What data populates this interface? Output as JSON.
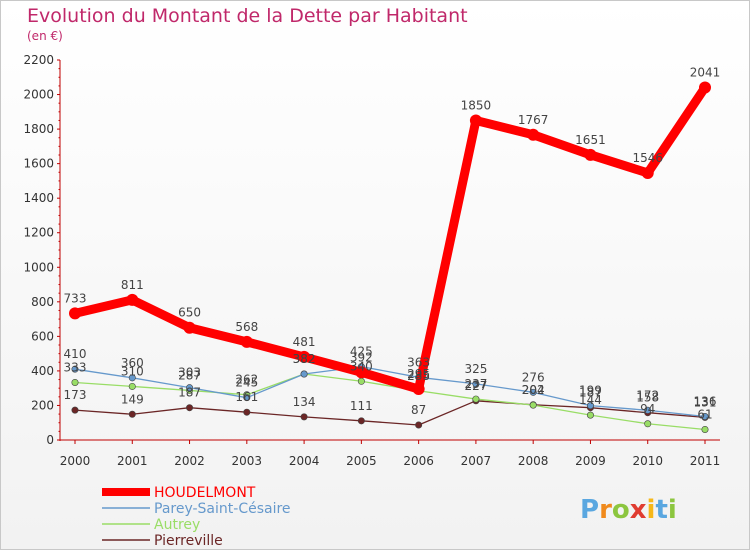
{
  "chart_data": {
    "type": "line",
    "title": "Evolution du Montant de la Dette par Habitant",
    "subtitle": "(en €)",
    "xlabel": "",
    "ylabel": "",
    "x": [
      "2000",
      "2001",
      "2002",
      "2003",
      "2004",
      "2005",
      "2006",
      "2007",
      "2008",
      "2009",
      "2010",
      "2011"
    ],
    "ylim": [
      0,
      2200
    ],
    "yticks": [
      0,
      200,
      400,
      600,
      800,
      1000,
      1200,
      1400,
      1600,
      1800,
      2000,
      2200
    ],
    "grid": false,
    "legend_position": "bottom-left",
    "series": [
      {
        "name": "HOUDELMONT",
        "color": "#ff0000",
        "values": [
          733,
          811,
          650,
          568,
          481,
          392,
          295,
          1850,
          1767,
          1651,
          1546,
          2041
        ]
      },
      {
        "name": "Parey-Saint-Césaire",
        "color": "#6699cc",
        "values": [
          410,
          360,
          303,
          245,
          382,
          425,
          363,
          325,
          276,
          199,
          172,
          136
        ]
      },
      {
        "name": "Autrey",
        "color": "#99dd66",
        "values": [
          333,
          310,
          287,
          262,
          382,
          340,
          285,
          237,
          202,
          144,
          94,
          61
        ]
      },
      {
        "name": "Pierreville",
        "color": "#6b2626",
        "values": [
          173,
          149,
          187,
          161,
          134,
          111,
          87,
          227,
          204,
          187,
          158,
          131
        ]
      }
    ],
    "data_labels": [
      [
        "733",
        "811",
        "650",
        "568",
        "481",
        "392",
        "295",
        "1850",
        "1767",
        "1651",
        "1546",
        "2041"
      ],
      [
        "410",
        "360",
        "303",
        "245",
        "382",
        "425",
        "363",
        "325",
        "276",
        "199",
        "172",
        "136"
      ],
      [
        "333",
        "310",
        "287",
        "262",
        "382",
        "340",
        "285",
        "237",
        "202",
        "144",
        "94",
        "61"
      ],
      [
        "173",
        "149",
        "187",
        "161",
        "134",
        "111",
        "87",
        "227",
        "204",
        "187",
        "158",
        "131"
      ]
    ]
  },
  "brand": {
    "letters": [
      "P",
      "r",
      "o",
      "x",
      "i",
      "t",
      "i"
    ],
    "colors": [
      "#5aa7e0",
      "#f08a1c",
      "#8cc63f",
      "#e03c31",
      "#f6b81a",
      "#5aa7e0",
      "#8cc63f"
    ]
  }
}
